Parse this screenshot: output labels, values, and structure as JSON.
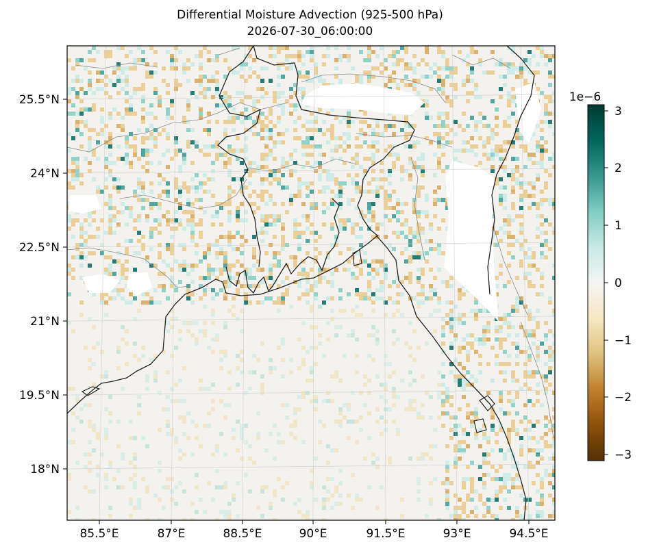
{
  "title": "Differential Moisture Advection (925-500 hPa)",
  "subtitle": "2026-07-30_06:00:00",
  "lon_labels": [
    "85.5°E",
    "87°E",
    "88.5°E",
    "90°E",
    "91.5°E",
    "93°E",
    "94.5°E"
  ],
  "lat_labels": [
    "25.5°N",
    "24°N",
    "22.5°N",
    "21°N",
    "19.5°N",
    "18°N"
  ],
  "colorbar": {
    "exponent_label": "1e−6",
    "tick_labels": [
      "3",
      "2",
      "1",
      "0",
      "−1",
      "−2",
      "−3"
    ],
    "tick_values": [
      3,
      2,
      1,
      0,
      -1,
      -2,
      -3
    ],
    "range": [
      -3.1,
      3.1
    ],
    "colormap": "BrBG",
    "colors": [
      "#543005",
      "#8c510a",
      "#bf812d",
      "#dfc27d",
      "#f6e8c3",
      "#f5f5f5",
      "#c7eae5",
      "#80cdc1",
      "#35978f",
      "#01665e",
      "#003c30"
    ]
  },
  "map_extent": {
    "lon": [
      84.85,
      94.85
    ],
    "lat": [
      16.85,
      26.5
    ]
  },
  "colors": {
    "coastline": "#222222",
    "borders": "#888888",
    "grid": "#cccccc",
    "missing": "#ffffff"
  }
}
